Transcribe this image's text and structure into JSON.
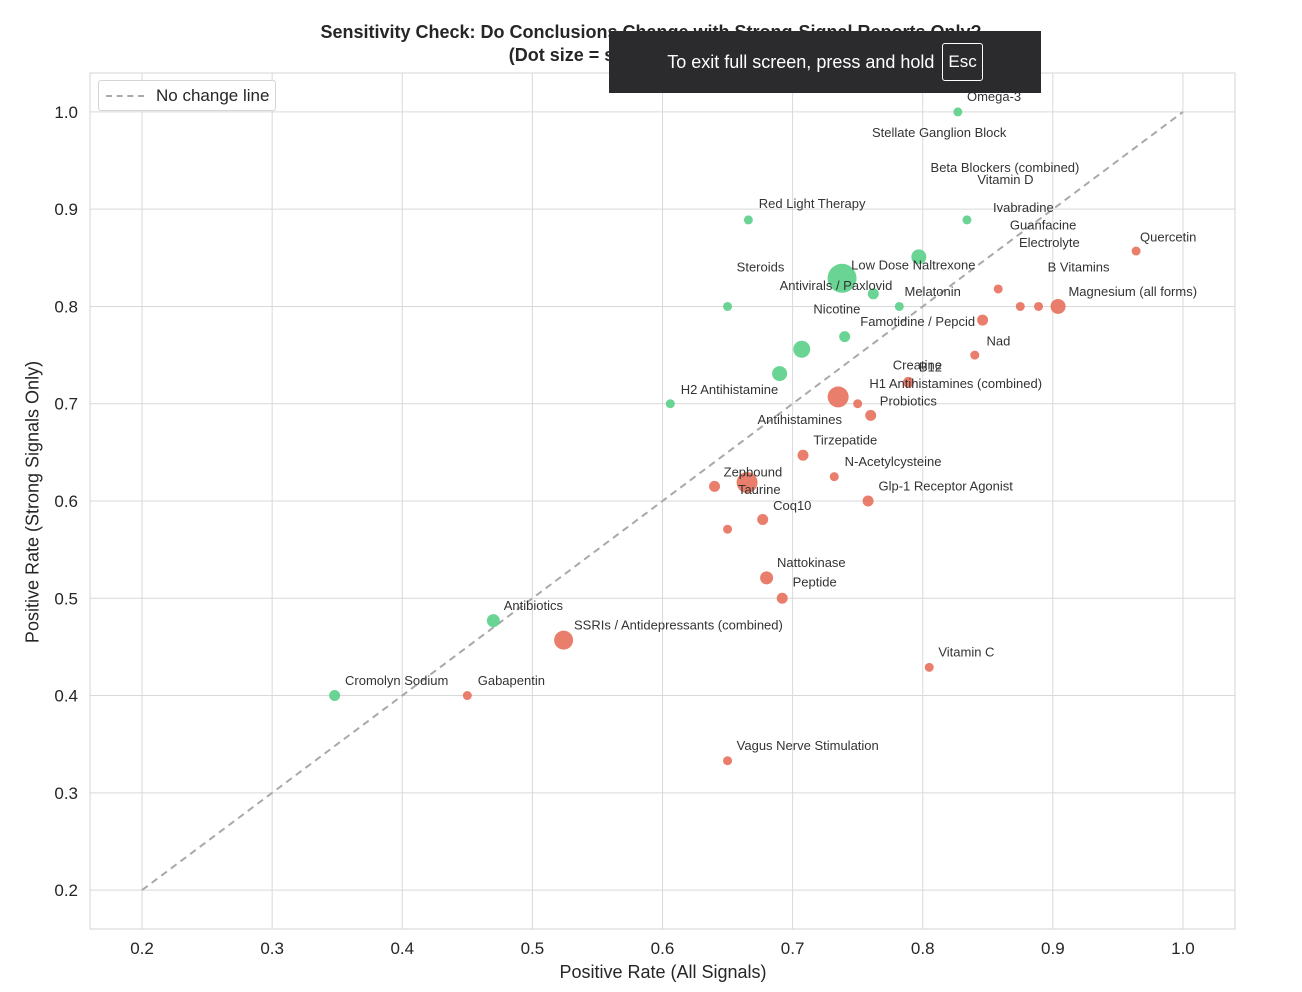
{
  "chart_data": {
    "type": "scatter",
    "title": "Sensitivity Check: Do Conclusions Change with Strong-Signal Reports Only?",
    "subtitle": "(Dot size = strong-signal users; g",
    "xlabel": "Positive Rate (All Signals)",
    "ylabel": "Positive Rate (Strong Signals Only)",
    "xlim": [
      0.16,
      1.04
    ],
    "ylim": [
      0.16,
      1.04
    ],
    "xticks": [
      "0.2",
      "0.3",
      "0.4",
      "0.5",
      "0.6",
      "0.7",
      "0.8",
      "0.9",
      "1.0"
    ],
    "yticks": [
      "0.2",
      "0.3",
      "0.4",
      "0.5",
      "0.6",
      "0.7",
      "0.8",
      "0.9",
      "1.0"
    ],
    "grid": true,
    "legend": {
      "placement": "top-left",
      "entries": [
        "No change line"
      ]
    },
    "reference_line": {
      "name": "No change line",
      "x": [
        0.2,
        1.0
      ],
      "y": [
        0.2,
        1.0
      ],
      "style": "dashed"
    },
    "colors": {
      "green": "#5dd08b",
      "red": "#e8735f",
      "reference": "#a9a9a9",
      "grid": "#d9d9d9"
    },
    "points": [
      {
        "x": 0.827,
        "y": 1.0,
        "size": 3,
        "color": "green"
      },
      {
        "x": 0.666,
        "y": 0.889,
        "size": 3,
        "color": "green"
      },
      {
        "x": 0.834,
        "y": 0.889,
        "size": 3,
        "color": "green"
      },
      {
        "x": 0.797,
        "y": 0.851,
        "size": 6,
        "color": "green"
      },
      {
        "x": 0.738,
        "y": 0.829,
        "size": 13,
        "color": "green"
      },
      {
        "x": 0.762,
        "y": 0.813,
        "size": 4,
        "color": "green"
      },
      {
        "x": 0.65,
        "y": 0.8,
        "size": 3,
        "color": "green"
      },
      {
        "x": 0.782,
        "y": 0.8,
        "size": 3,
        "color": "green"
      },
      {
        "x": 0.74,
        "y": 0.769,
        "size": 4,
        "color": "green"
      },
      {
        "x": 0.707,
        "y": 0.756,
        "size": 7,
        "color": "green"
      },
      {
        "x": 0.69,
        "y": 0.731,
        "size": 6,
        "color": "green"
      },
      {
        "x": 0.606,
        "y": 0.7,
        "size": 3,
        "color": "green"
      },
      {
        "x": 0.47,
        "y": 0.477,
        "size": 5,
        "color": "green"
      },
      {
        "x": 0.348,
        "y": 0.4,
        "size": 4,
        "color": "green"
      },
      {
        "x": 0.964,
        "y": 0.857,
        "size": 3,
        "color": "red"
      },
      {
        "x": 0.858,
        "y": 0.818,
        "size": 3,
        "color": "red"
      },
      {
        "x": 0.875,
        "y": 0.8,
        "size": 3,
        "color": "red"
      },
      {
        "x": 0.889,
        "y": 0.8,
        "size": 3,
        "color": "red"
      },
      {
        "x": 0.904,
        "y": 0.8,
        "size": 6,
        "color": "red"
      },
      {
        "x": 0.846,
        "y": 0.786,
        "size": 4,
        "color": "red"
      },
      {
        "x": 0.84,
        "y": 0.75,
        "size": 3,
        "color": "red"
      },
      {
        "x": 0.789,
        "y": 0.722,
        "size": 4,
        "color": "red"
      },
      {
        "x": 0.735,
        "y": 0.707,
        "size": 9,
        "color": "red"
      },
      {
        "x": 0.75,
        "y": 0.7,
        "size": 3,
        "color": "red"
      },
      {
        "x": 0.76,
        "y": 0.688,
        "size": 4,
        "color": "red"
      },
      {
        "x": 0.708,
        "y": 0.647,
        "size": 4,
        "color": "red"
      },
      {
        "x": 0.732,
        "y": 0.625,
        "size": 3,
        "color": "red"
      },
      {
        "x": 0.665,
        "y": 0.619,
        "size": 9,
        "color": "red"
      },
      {
        "x": 0.64,
        "y": 0.615,
        "size": 4,
        "color": "red"
      },
      {
        "x": 0.758,
        "y": 0.6,
        "size": 4,
        "color": "red"
      },
      {
        "x": 0.677,
        "y": 0.581,
        "size": 4,
        "color": "red"
      },
      {
        "x": 0.65,
        "y": 0.571,
        "size": 3,
        "color": "red"
      },
      {
        "x": 0.68,
        "y": 0.521,
        "size": 5,
        "color": "red"
      },
      {
        "x": 0.692,
        "y": 0.5,
        "size": 4,
        "color": "red"
      },
      {
        "x": 0.524,
        "y": 0.457,
        "size": 8,
        "color": "red"
      },
      {
        "x": 0.805,
        "y": 0.429,
        "size": 3,
        "color": "red"
      },
      {
        "x": 0.45,
        "y": 0.4,
        "size": 3,
        "color": "red"
      },
      {
        "x": 0.65,
        "y": 0.333,
        "size": 3,
        "color": "red"
      }
    ],
    "annotations": [
      {
        "text": "Omega-3",
        "x": 0.834,
        "y": 1.011
      },
      {
        "text": "Stellate Ganglion Block",
        "x": 0.761,
        "y": 0.974
      },
      {
        "text": "Beta Blockers (combined)",
        "x": 0.806,
        "y": 0.938
      },
      {
        "text": "Vitamin D",
        "x": 0.842,
        "y": 0.926
      },
      {
        "text": "Red Light Therapy",
        "x": 0.674,
        "y": 0.901
      },
      {
        "text": "Ivabradine",
        "x": 0.854,
        "y": 0.897
      },
      {
        "text": "Guanfacine",
        "x": 0.867,
        "y": 0.879
      },
      {
        "text": "Quercetin",
        "x": 0.967,
        "y": 0.867
      },
      {
        "text": "Electrolyte",
        "x": 0.874,
        "y": 0.861
      },
      {
        "text": "Steroids",
        "x": 0.657,
        "y": 0.836
      },
      {
        "text": "Low Dose Naltrexone",
        "x": 0.745,
        "y": 0.838
      },
      {
        "text": "B Vitamins",
        "x": 0.896,
        "y": 0.836
      },
      {
        "text": "Antivirals / Paxlovid",
        "x": 0.69,
        "y": 0.817
      },
      {
        "text": "Melatonin",
        "x": 0.786,
        "y": 0.811
      },
      {
        "text": "Magnesium (all forms)",
        "x": 0.912,
        "y": 0.811
      },
      {
        "text": "Nicotine",
        "x": 0.716,
        "y": 0.793
      },
      {
        "text": "Famotidine / Pepcid",
        "x": 0.752,
        "y": 0.78
      },
      {
        "text": "Nad",
        "x": 0.849,
        "y": 0.76
      },
      {
        "text": "Creatine",
        "x": 0.777,
        "y": 0.735
      },
      {
        "text": "B12",
        "x": 0.797,
        "y": 0.733
      },
      {
        "text": "H2 Antihistamine",
        "x": 0.614,
        "y": 0.71
      },
      {
        "text": "H1 Antihistamines (combined)",
        "x": 0.759,
        "y": 0.716
      },
      {
        "text": "Probiotics",
        "x": 0.767,
        "y": 0.698
      },
      {
        "text": "Antihistamines",
        "x": 0.673,
        "y": 0.679
      },
      {
        "text": "Tirzepatide",
        "x": 0.716,
        "y": 0.658
      },
      {
        "text": "N-Acetylcysteine",
        "x": 0.74,
        "y": 0.636
      },
      {
        "text": "Zepbound",
        "x": 0.647,
        "y": 0.625
      },
      {
        "text": "Glp-1 Receptor Agonist",
        "x": 0.766,
        "y": 0.611
      },
      {
        "text": "Taurine",
        "x": 0.658,
        "y": 0.607
      },
      {
        "text": "Coq10",
        "x": 0.685,
        "y": 0.591
      },
      {
        "text": "Nattokinase",
        "x": 0.688,
        "y": 0.532
      },
      {
        "text": "Peptide",
        "x": 0.7,
        "y": 0.512
      },
      {
        "text": "Antibiotics",
        "x": 0.478,
        "y": 0.488
      },
      {
        "text": "SSRIs / Antidepressants (combined)",
        "x": 0.532,
        "y": 0.468
      },
      {
        "text": "Vitamin C",
        "x": 0.812,
        "y": 0.44
      },
      {
        "text": "Cromolyn Sodium",
        "x": 0.356,
        "y": 0.411
      },
      {
        "text": "Gabapentin",
        "x": 0.458,
        "y": 0.411
      },
      {
        "text": "Vagus Nerve Stimulation",
        "x": 0.657,
        "y": 0.344
      }
    ]
  },
  "overlay": {
    "message": "To exit full screen, press and hold",
    "key": "Esc"
  }
}
